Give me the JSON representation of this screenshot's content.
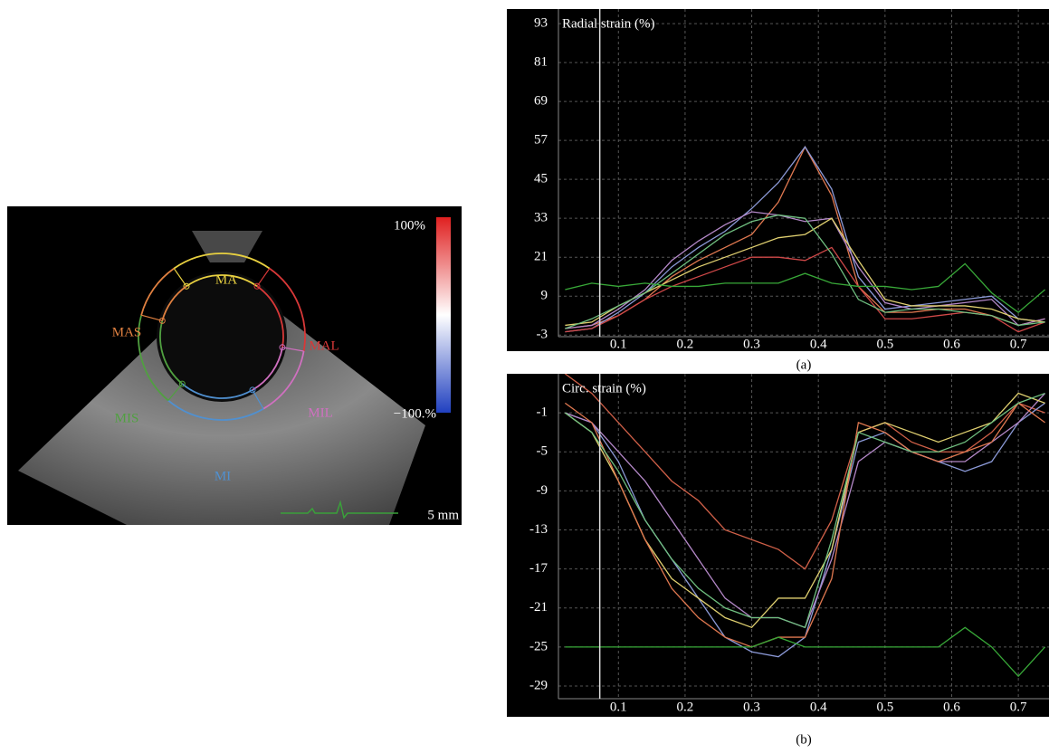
{
  "echo_image": {
    "segment_labels": [
      "MA",
      "MAS",
      "MAL",
      "MIS",
      "MIL",
      "MI"
    ],
    "scale_max": "100%",
    "scale_min": "−100.%",
    "scale_bar": "5 mm"
  },
  "chart_data": [
    {
      "type": "line",
      "title": "Radial strain (%)",
      "caption": "(a)",
      "x": [
        0.02,
        0.06,
        0.1,
        0.14,
        0.18,
        0.22,
        0.26,
        0.3,
        0.34,
        0.38,
        0.42,
        0.46,
        0.5,
        0.54,
        0.58,
        0.62,
        0.66,
        0.7,
        0.74
      ],
      "xlim": [
        0.01,
        0.746
      ],
      "xticks": [
        0.1,
        0.2,
        0.3,
        0.4,
        0.5,
        0.6,
        0.7
      ],
      "ylim": [
        -3.5,
        97.5
      ],
      "yticks": [
        -3,
        9,
        21,
        33,
        45,
        57,
        69,
        81,
        93
      ],
      "grid": true,
      "cursor_x": 0.072,
      "series": [
        {
          "color": "#e07850",
          "values": [
            -1,
            0,
            3,
            8,
            15,
            20,
            24,
            28,
            38,
            55,
            40,
            12,
            4,
            4,
            5,
            5,
            3,
            0,
            2
          ]
        },
        {
          "color": "#8c9ad8",
          "values": [
            -2,
            -1,
            4,
            10,
            18,
            24,
            29,
            36,
            44,
            55,
            42,
            15,
            5,
            6,
            7,
            8,
            9,
            2,
            1
          ]
        },
        {
          "color": "#b488c8",
          "values": [
            -1,
            0,
            5,
            11,
            20,
            26,
            31,
            35,
            34,
            32,
            33,
            18,
            7,
            5,
            6,
            7,
            8,
            0,
            2
          ]
        },
        {
          "color": "#e0d070",
          "values": [
            0,
            1,
            6,
            10,
            14,
            18,
            21,
            24,
            27,
            28,
            33,
            20,
            8,
            6,
            6,
            6,
            5,
            2,
            1
          ]
        },
        {
          "color": "#d04848",
          "values": [
            -2,
            -1,
            3,
            8,
            12,
            15,
            18,
            21,
            21,
            20,
            24,
            12,
            2,
            2,
            3,
            4,
            3,
            -2,
            1
          ]
        },
        {
          "color": "#70c080",
          "values": [
            -1,
            2,
            6,
            10,
            16,
            22,
            28,
            32,
            34,
            33,
            22,
            8,
            4,
            5,
            5,
            4,
            3,
            0,
            1
          ]
        },
        {
          "color": "#38a838",
          "values": [
            11,
            13,
            12,
            13,
            12,
            12,
            13,
            13,
            13,
            16,
            13,
            12,
            12,
            11,
            12,
            19,
            10,
            4,
            11
          ]
        }
      ]
    },
    {
      "type": "line",
      "title": "Circ. strain (%)",
      "caption": "(b)",
      "x": [
        0.02,
        0.06,
        0.1,
        0.14,
        0.18,
        0.22,
        0.26,
        0.3,
        0.34,
        0.38,
        0.42,
        0.46,
        0.5,
        0.54,
        0.58,
        0.62,
        0.66,
        0.7,
        0.74
      ],
      "xlim": [
        0.01,
        0.746
      ],
      "xticks": [
        0.1,
        0.2,
        0.3,
        0.4,
        0.5,
        0.6,
        0.7
      ],
      "ylim": [
        -30.3,
        3
      ],
      "yticks": [
        -29,
        -25,
        -21,
        -17,
        -13,
        -9,
        -5,
        -1
      ],
      "grid": true,
      "cursor_x": 0.072,
      "series": [
        {
          "color": "#d06048",
          "values": [
            3,
            1,
            -2,
            -5,
            -8,
            -10,
            -13,
            -14,
            -15,
            -17,
            -12,
            -3,
            -2,
            -4,
            -5,
            -5,
            -3,
            0,
            -1
          ]
        },
        {
          "color": "#8c9ad8",
          "values": [
            -1,
            -2,
            -6,
            -12,
            -16,
            -20,
            -24,
            -25.5,
            -26,
            -24,
            -15,
            -4,
            -3,
            -5,
            -6,
            -7,
            -6,
            -2,
            0
          ]
        },
        {
          "color": "#b488c8",
          "values": [
            -1,
            -2,
            -5,
            -8,
            -12,
            -16,
            -20,
            -22,
            -22,
            -23,
            -16,
            -6,
            -4,
            -5,
            -6,
            -6,
            -4,
            -2,
            1
          ]
        },
        {
          "color": "#e0d070",
          "values": [
            -1,
            -3,
            -8,
            -14,
            -18,
            -20,
            -22,
            -23,
            -20,
            -20,
            -15,
            -3,
            -2,
            -3,
            -4,
            -3,
            -2,
            1,
            0
          ]
        },
        {
          "color": "#e07850",
          "values": [
            0,
            -2,
            -8,
            -14,
            -19,
            -22,
            -24,
            -25,
            -24,
            -24,
            -18,
            -2,
            -3,
            -5,
            -6,
            -5,
            -4,
            0,
            -2
          ]
        },
        {
          "color": "#70c080",
          "values": [
            -1,
            -3,
            -7,
            -12,
            -16,
            -19,
            -21,
            -22,
            -22,
            -23,
            -14,
            -3,
            -4,
            -5,
            -5,
            -4,
            -2,
            0,
            1
          ]
        },
        {
          "color": "#38a838",
          "values": [
            -25,
            -25,
            -25,
            -25,
            -25,
            -25,
            -25,
            -25,
            -24,
            -25,
            -25,
            -25,
            -25,
            -25,
            -25,
            -23,
            -25,
            -28,
            -25
          ]
        }
      ]
    }
  ]
}
